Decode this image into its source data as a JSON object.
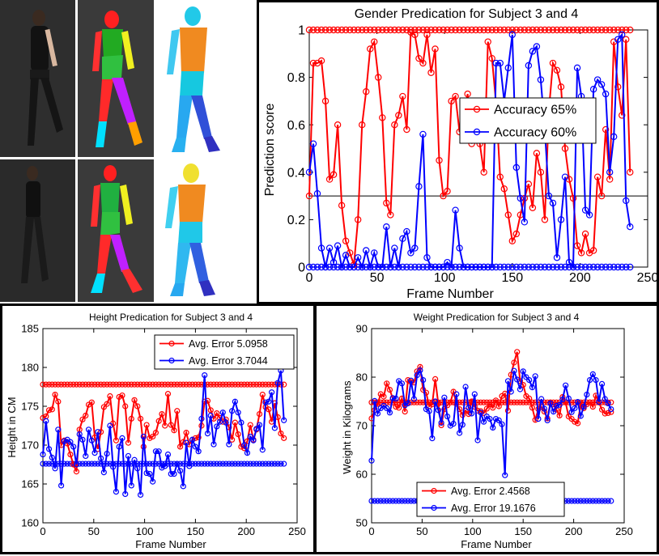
{
  "photos": {
    "captions": [],
    "cells": [
      {
        "name": "subject-3-photo",
        "kind": "photo"
      },
      {
        "name": "subject-3-skeleton",
        "kind": "skeleton"
      },
      {
        "name": "subject-3-mesh",
        "kind": "mesh"
      },
      {
        "name": "subject-4-photo",
        "kind": "photo"
      },
      {
        "name": "subject-4-skeleton",
        "kind": "skeleton"
      },
      {
        "name": "subject-4-mesh",
        "kind": "mesh"
      }
    ]
  },
  "chart_data": [
    {
      "id": "gender",
      "type": "line",
      "title": "Gender Predication for Subject 3 and 4",
      "xlabel": "Frame Number",
      "ylabel": "Prediction score",
      "xlim": [
        0,
        250
      ],
      "ylim": [
        0,
        1
      ],
      "xticks": [
        0,
        50,
        100,
        150,
        200,
        250
      ],
      "yticks": [
        0,
        0.2,
        0.4,
        0.6,
        0.8,
        1
      ],
      "ytick_labels": [
        "0",
        "0.2",
        "0.4",
        "0.6",
        "0.8",
        "1"
      ],
      "legend_position": "right",
      "threshold": 0.3,
      "x": [
        0,
        3,
        6,
        9,
        12,
        15,
        18,
        21,
        24,
        27,
        30,
        33,
        36,
        39,
        42,
        45,
        48,
        51,
        54,
        57,
        60,
        63,
        66,
        69,
        72,
        75,
        78,
        81,
        84,
        87,
        90,
        93,
        96,
        99,
        102,
        105,
        108,
        111,
        114,
        117,
        120,
        123,
        126,
        129,
        132,
        135,
        138,
        141,
        144,
        147,
        150,
        153,
        156,
        159,
        162,
        165,
        168,
        171,
        174,
        177,
        180,
        183,
        186,
        189,
        192,
        195,
        198,
        201,
        204,
        207,
        210,
        213,
        216,
        219,
        222,
        225,
        228,
        231,
        234,
        237
      ],
      "series": [
        {
          "name": "Accuracy 65%",
          "color": "#ff0000",
          "constant": 1,
          "values": [
            0.3,
            0.86,
            0.86,
            0.87,
            0.7,
            0.37,
            0.39,
            0.6,
            0.26,
            0.11,
            0.06,
            0.01,
            0.2,
            0.6,
            0.74,
            0.92,
            0.95,
            0.8,
            0.63,
            0.27,
            0.22,
            0.6,
            0.64,
            0.72,
            0.58,
            0.99,
            0.98,
            0.88,
            0.86,
            0.98,
            0.82,
            0.92,
            0.45,
            0.3,
            0.32,
            0.7,
            0.72,
            0.57,
            0.63,
            0.73,
            0.52,
            0.68,
            0.52,
            0.4,
            0.95,
            0.88,
            0.69,
            0.38,
            0.33,
            0.22,
            0.11,
            0.14,
            0.22,
            0.29,
            0.35,
            0.25,
            0.48,
            0.4,
            0.2,
            0.66,
            0.86,
            0.83,
            0.76,
            0.5,
            0.37,
            0.29,
            0.09,
            0.06,
            0.14,
            0.06,
            0.07,
            0.38,
            0.3,
            0.58,
            0.37,
            0.95,
            0.76,
            0.64,
            0.96,
            0.4
          ]
        },
        {
          "name": "Accuracy 60%",
          "color": "#0000ff",
          "constant": 0,
          "values": [
            0.4,
            0.52,
            0.31,
            0.08,
            0.0,
            0.08,
            0.02,
            0.09,
            0.0,
            0.05,
            0.0,
            0.0,
            0.04,
            0.0,
            0.07,
            0.0,
            0.06,
            0.0,
            0.0,
            0.17,
            0.0,
            0.08,
            0.0,
            0.12,
            0.15,
            0.06,
            0.08,
            0.34,
            0.56,
            0.04,
            0.0,
            0.0,
            0.0,
            0.0,
            0.02,
            0.0,
            0.24,
            0.08,
            0.0,
            0.0,
            0.0,
            0.0,
            0.0,
            0.0,
            0.0,
            0.0,
            0.86,
            0.86,
            0.7,
            0.84,
            0.98,
            0.42,
            0.29,
            0.19,
            0.85,
            0.91,
            0.93,
            0.79,
            0.58,
            0.3,
            0.27,
            0.04,
            0.2,
            0.38,
            0.02,
            0.0,
            0.84,
            0.72,
            0.24,
            0.22,
            0.75,
            0.79,
            0.77,
            0.73,
            0.4,
            0.55,
            0.96,
            0.98,
            0.28,
            0.17
          ]
        }
      ]
    },
    {
      "id": "height",
      "type": "line",
      "title": "Height Predication for Subject 3 and 4",
      "xlabel": "Frame Number",
      "ylabel": "Height in CM",
      "xlim": [
        0,
        250
      ],
      "ylim": [
        160,
        185
      ],
      "xticks": [
        0,
        50,
        100,
        150,
        200,
        250
      ],
      "yticks": [
        160,
        165,
        170,
        175,
        180,
        185
      ],
      "ytick_labels": [
        "160",
        "165",
        "170",
        "175",
        "180",
        "185"
      ],
      "legend_position": "top-right",
      "x": [
        0,
        3,
        6,
        9,
        12,
        15,
        18,
        21,
        24,
        27,
        30,
        33,
        36,
        39,
        42,
        45,
        48,
        51,
        54,
        57,
        60,
        63,
        66,
        69,
        72,
        75,
        78,
        81,
        84,
        87,
        90,
        93,
        96,
        99,
        102,
        105,
        108,
        111,
        114,
        117,
        120,
        123,
        126,
        129,
        132,
        135,
        138,
        141,
        144,
        147,
        150,
        153,
        156,
        159,
        162,
        165,
        168,
        171,
        174,
        177,
        180,
        183,
        186,
        189,
        192,
        195,
        198,
        201,
        204,
        207,
        210,
        213,
        216,
        219,
        222,
        225,
        228,
        231,
        234,
        237
      ],
      "series": [
        {
          "name": "Avg. Error 5.0958",
          "color": "#ff0000",
          "constant": 177.8,
          "values": [
            173.5,
            173.7,
            174.5,
            174.6,
            176.5,
            175.6,
            170.0,
            170.6,
            170.2,
            168.8,
            167.5,
            166.6,
            172.0,
            173.3,
            173.8,
            175.2,
            175.5,
            171.0,
            169.5,
            171.7,
            174.9,
            175.3,
            176.3,
            172.8,
            170.6,
            176.2,
            176.4,
            175.0,
            170.3,
            173.4,
            175.8,
            175.0,
            173.4,
            169.8,
            172.6,
            170.9,
            171.1,
            171.6,
            173.1,
            174.0,
            172.5,
            176.6,
            172.6,
            171.9,
            174.4,
            169.8,
            170.4,
            171.6,
            170.1,
            170.7,
            170.9,
            171.0,
            172.5,
            175.6,
            175.7,
            174.5,
            173.4,
            174.1,
            173.5,
            173.0,
            173.3,
            172.3,
            170.7,
            172.9,
            171.4,
            169.8,
            169.6,
            170.5,
            172.6,
            170.7,
            172.0,
            174.0,
            176.5,
            174.9,
            174.6,
            173.0,
            175.4,
            173.6,
            171.5,
            170.9
          ]
        },
        {
          "name": "Avg. Error 3.7044",
          "color": "#0000ff",
          "constant": 167.6,
          "values": [
            168.8,
            173.1,
            169.5,
            168.4,
            167.0,
            172.0,
            164.8,
            170.5,
            170.7,
            170.4,
            169.8,
            167.5,
            171.4,
            170.7,
            168.6,
            172.0,
            170.6,
            169.0,
            171.7,
            168.3,
            166.5,
            168.9,
            172.5,
            167.2,
            164.0,
            169.8,
            170.9,
            163.7,
            168.6,
            164.8,
            168.1,
            167.0,
            163.6,
            171.1,
            166.4,
            166.3,
            165.3,
            169.2,
            169.2,
            167.1,
            167.3,
            168.8,
            166.3,
            166.3,
            167.6,
            166.7,
            164.7,
            170.3,
            167.3,
            170.7,
            169.8,
            169.2,
            173.4,
            179.0,
            171.5,
            173.8,
            170.1,
            172.4,
            173.0,
            174.2,
            172.9,
            170.1,
            174.4,
            175.6,
            174.2,
            172.9,
            170.0,
            169.0,
            171.1,
            170.6,
            172.1,
            172.6,
            169.4,
            175.5,
            175.6,
            176.8,
            172.2,
            178.0,
            179.6,
            173.2
          ]
        }
      ]
    },
    {
      "id": "weight",
      "type": "line",
      "title": "Weight Predication for Subject 3 and 4",
      "xlabel": "Frame Number",
      "ylabel": "Weight in Kilograms",
      "xlim": [
        0,
        250
      ],
      "ylim": [
        50,
        90
      ],
      "xticks": [
        0,
        50,
        100,
        150,
        200,
        250
      ],
      "yticks": [
        50,
        60,
        70,
        80,
        90
      ],
      "ytick_labels": [
        "50",
        "60",
        "70",
        "80",
        "90"
      ],
      "legend_position": "bottom-center",
      "x": [
        0,
        3,
        6,
        9,
        12,
        15,
        18,
        21,
        24,
        27,
        30,
        33,
        36,
        39,
        42,
        45,
        48,
        51,
        54,
        57,
        60,
        63,
        66,
        69,
        72,
        75,
        78,
        81,
        84,
        87,
        90,
        93,
        96,
        99,
        102,
        105,
        108,
        111,
        114,
        117,
        120,
        123,
        126,
        129,
        132,
        135,
        138,
        141,
        144,
        147,
        150,
        153,
        156,
        159,
        162,
        165,
        168,
        171,
        174,
        177,
        180,
        183,
        186,
        189,
        192,
        195,
        198,
        201,
        204,
        207,
        210,
        213,
        216,
        219,
        222,
        225,
        228,
        231,
        234,
        237
      ],
      "series": [
        {
          "name": "Avg. Error 2.4568",
          "color": "#ff0000",
          "constant": 74.8,
          "values": [
            71.5,
            73.2,
            74.5,
            76.5,
            76.0,
            78.7,
            77.4,
            75.6,
            73.9,
            73.7,
            75.6,
            72.9,
            79.4,
            79.0,
            78.9,
            81.2,
            82.1,
            77.4,
            76.8,
            74.0,
            74.4,
            79.6,
            74.5,
            70.1,
            73.4,
            74.2,
            74.8,
            77.0,
            74.5,
            73.4,
            72.2,
            73.1,
            72.4,
            75.0,
            73.9,
            73.1,
            73.0,
            72.6,
            73.5,
            74.4,
            73.7,
            75.2,
            74.0,
            76.1,
            76.6,
            73.1,
            80.5,
            83.0,
            85.2,
            79.2,
            78.4,
            76.1,
            75.6,
            73.7,
            71.2,
            73.4,
            73.9,
            72.9,
            71.5,
            74.8,
            74.4,
            73.3,
            72.1,
            75.9,
            74.8,
            71.9,
            71.4,
            70.8,
            70.5,
            74.5,
            73.6,
            74.4,
            74.8,
            73.9,
            76.2,
            74.8,
            73.3,
            72.5,
            72.6,
            72.8
          ]
        },
        {
          "name": "Avg. Error 19.1676",
          "color": "#0000ff",
          "constant": 54.5,
          "values": [
            62.8,
            75.1,
            72.5,
            73.6,
            74.1,
            73.6,
            72.7,
            75.7,
            75.6,
            79.2,
            78.7,
            74.2,
            74.6,
            79.3,
            75.5,
            80.4,
            81.4,
            79.4,
            73.4,
            73.0,
            67.4,
            75.0,
            73.2,
            70.6,
            75.8,
            71.9,
            70.0,
            70.4,
            76.5,
            68.5,
            70.2,
            78.0,
            73.7,
            72.5,
            76.5,
            67.0,
            72.7,
            70.8,
            71.9,
            71.4,
            69.6,
            71.4,
            71.1,
            70.3,
            59.8,
            79.2,
            77.0,
            81.3,
            79.5,
            77.5,
            81.2,
            80.0,
            79.4,
            77.9,
            80.2,
            71.4,
            75.5,
            73.5,
            71.1,
            74.6,
            72.9,
            74.1,
            74.3,
            75.4,
            78.3,
            75.6,
            72.8,
            73.6,
            74.9,
            72.0,
            73.9,
            76.4,
            79.4,
            80.6,
            79.4,
            74.9,
            78.6,
            75.5,
            74.6,
            73.4
          ]
        }
      ]
    }
  ]
}
